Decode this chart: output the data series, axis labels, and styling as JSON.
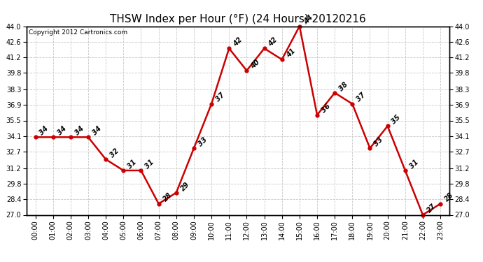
{
  "title": "THSW Index per Hour (°F) (24 Hours) 20120216",
  "copyright": "Copyright 2012 Cartronics.com",
  "hours": [
    "00:00",
    "01:00",
    "02:00",
    "03:00",
    "04:00",
    "05:00",
    "06:00",
    "07:00",
    "08:00",
    "09:00",
    "10:00",
    "11:00",
    "12:00",
    "13:00",
    "14:00",
    "15:00",
    "16:00",
    "17:00",
    "18:00",
    "19:00",
    "20:00",
    "21:00",
    "22:00",
    "23:00"
  ],
  "values": [
    34,
    34,
    34,
    34,
    32,
    31,
    31,
    28,
    29,
    33,
    37,
    42,
    40,
    42,
    41,
    44,
    36,
    38,
    37,
    33,
    35,
    31,
    27,
    28
  ],
  "ylim_min": 27.0,
  "ylim_max": 44.0,
  "yticks": [
    27.0,
    28.4,
    29.8,
    31.2,
    32.7,
    34.1,
    35.5,
    36.9,
    38.3,
    39.8,
    41.2,
    42.6,
    44.0
  ],
  "line_color": "#cc0000",
  "marker_color": "#cc0000",
  "bg_color": "#ffffff",
  "grid_color": "#c8c8c8",
  "title_fontsize": 11,
  "tick_fontsize": 7,
  "annot_fontsize": 7
}
